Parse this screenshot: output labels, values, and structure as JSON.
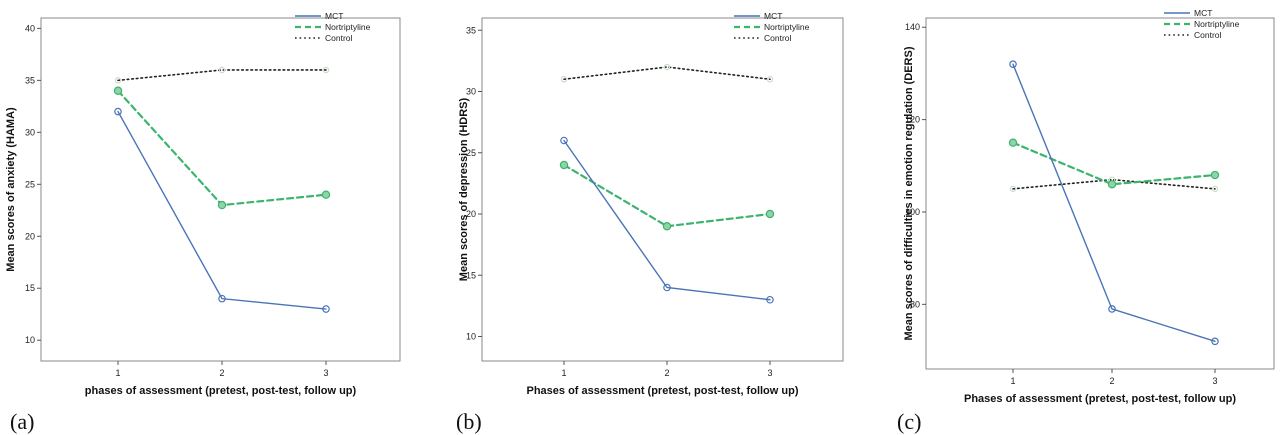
{
  "colors": {
    "MCT": "#4a74b8",
    "Nortriptyline": "#3cb46e",
    "Control": "#222222"
  },
  "chart_data": [
    {
      "type": "line",
      "panel_label": "(a)",
      "xlabel": "phases of assessment (pretest, post-test, follow up)",
      "ylabel": "Mean scores of anxiety (HAMA)",
      "x": [
        1,
        2,
        3
      ],
      "xticks": [
        "1",
        "2",
        "3"
      ],
      "ylim": [
        8,
        41
      ],
      "yticks": [
        10,
        15,
        20,
        25,
        30,
        35,
        40
      ],
      "legend_position": "top-right",
      "series": [
        {
          "name": "MCT",
          "values": [
            32,
            14,
            13
          ]
        },
        {
          "name": "Nortriptyline",
          "values": [
            34,
            23,
            24
          ]
        },
        {
          "name": "Control",
          "values": [
            35,
            36,
            36
          ]
        }
      ]
    },
    {
      "type": "line",
      "panel_label": "(b)",
      "xlabel": "Phases of assessment (pretest, post-test, follow up)",
      "ylabel": "Mean scores of depression (HDRS)",
      "x": [
        1,
        2,
        3
      ],
      "xticks": [
        "1",
        "2",
        "3"
      ],
      "ylim": [
        8,
        36
      ],
      "yticks": [
        10,
        15,
        20,
        25,
        30,
        35
      ],
      "legend_position": "top-right",
      "series": [
        {
          "name": "MCT",
          "values": [
            26,
            14,
            13
          ]
        },
        {
          "name": "Nortriptyline",
          "values": [
            24,
            19,
            20
          ]
        },
        {
          "name": "Control",
          "values": [
            31,
            32,
            31
          ]
        }
      ]
    },
    {
      "type": "line",
      "panel_label": "(c)",
      "xlabel": "Phases of assessment (pretest, post-test, follow up)",
      "ylabel": "Mean scores of difficulties in emotion regulation (DERS)",
      "x": [
        1,
        2,
        3
      ],
      "xticks": [
        "1",
        "2",
        "3"
      ],
      "ylim": [
        66,
        142
      ],
      "yticks": [
        80,
        100,
        120,
        140
      ],
      "legend_position": "top-right",
      "series": [
        {
          "name": "MCT",
          "values": [
            132,
            79,
            72
          ]
        },
        {
          "name": "Nortriptyline",
          "values": [
            115,
            106,
            108
          ]
        },
        {
          "name": "Control",
          "values": [
            105,
            107,
            105
          ]
        }
      ]
    }
  ]
}
